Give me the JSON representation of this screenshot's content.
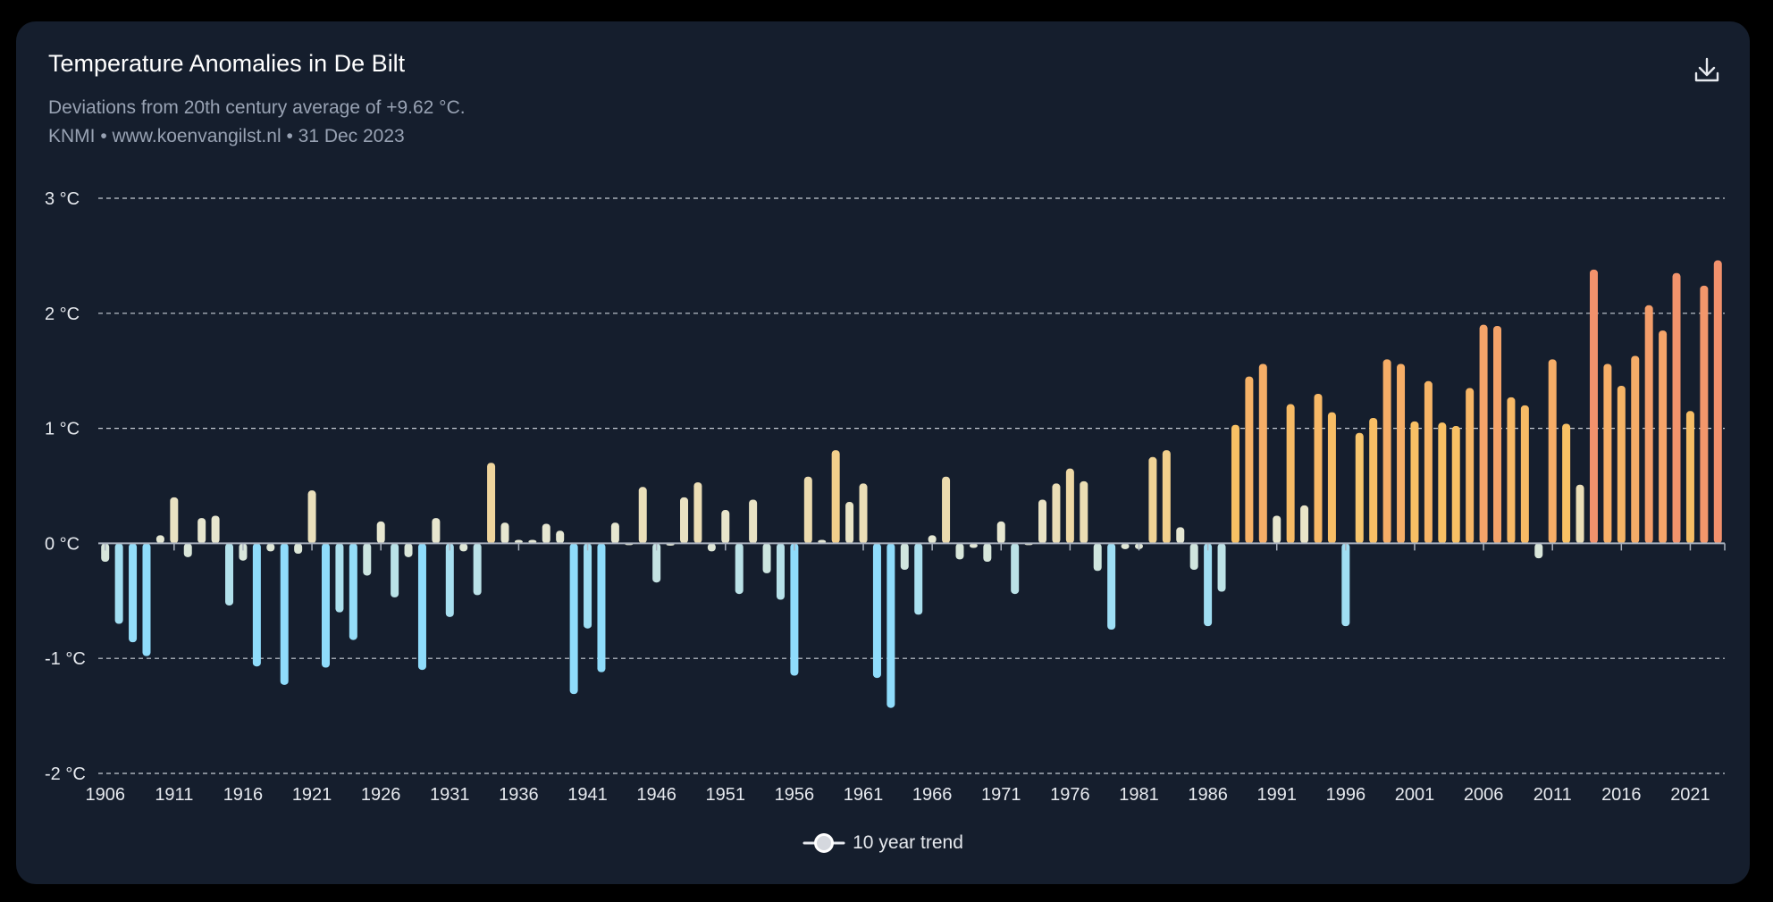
{
  "header": {
    "title": "Temperature Anomalies in De Bilt",
    "subtitle": "Deviations from 20th century average of +9.62 °C.",
    "source": "KNMI • www.koenvangilst.nl • 31 Dec 2023",
    "download_icon": "download-icon"
  },
  "legend": {
    "label": "10 year trend",
    "icon": "toggle-icon"
  },
  "chart_data": {
    "type": "bar",
    "title": "Temperature Anomalies in De Bilt",
    "subtitle": "Deviations from 20th century average of +9.62 °C.",
    "y_unit": " °C",
    "ylim": [
      -2,
      3
    ],
    "y_ticks": [
      3,
      2,
      1,
      0,
      -1,
      -2
    ],
    "y_tick_labels": [
      "3 °C",
      "2 °C",
      "1 °C",
      "0 °C",
      "-1 °C",
      "-2 °C"
    ],
    "x_tick_labels": [
      "1906",
      "1911",
      "1916",
      "1921",
      "1926",
      "1931",
      "1936",
      "1941",
      "1946",
      "1951",
      "1956",
      "1961",
      "1966",
      "1971",
      "1976",
      "1981",
      "1986",
      "1991",
      "1996",
      "2001",
      "2006",
      "2011",
      "2016",
      "2021"
    ],
    "grid": "horizontal-dashed",
    "legend_position": "bottom-center",
    "colors": {
      "cold": "#8fdcfb",
      "neutral": "#e6e8d4",
      "warm": "#f8c264",
      "hot": "#f2916c",
      "grid": "#c8cdd6",
      "axis_text": "#e6e9ee"
    },
    "categories": [
      1906,
      1907,
      1908,
      1909,
      1910,
      1911,
      1912,
      1913,
      1914,
      1915,
      1916,
      1917,
      1918,
      1919,
      1920,
      1921,
      1922,
      1923,
      1924,
      1925,
      1926,
      1927,
      1928,
      1929,
      1930,
      1931,
      1932,
      1933,
      1934,
      1935,
      1936,
      1937,
      1938,
      1939,
      1940,
      1941,
      1942,
      1943,
      1944,
      1945,
      1946,
      1947,
      1948,
      1949,
      1950,
      1951,
      1952,
      1953,
      1954,
      1955,
      1956,
      1957,
      1958,
      1959,
      1960,
      1961,
      1962,
      1963,
      1964,
      1965,
      1966,
      1967,
      1968,
      1969,
      1970,
      1971,
      1972,
      1973,
      1974,
      1975,
      1976,
      1977,
      1978,
      1979,
      1980,
      1981,
      1982,
      1983,
      1984,
      1985,
      1986,
      1987,
      1988,
      1989,
      1990,
      1991,
      1992,
      1993,
      1994,
      1995,
      1996,
      1997,
      1998,
      1999,
      2000,
      2001,
      2002,
      2003,
      2004,
      2005,
      2006,
      2007,
      2008,
      2009,
      2010,
      2011,
      2012,
      2013,
      2014,
      2015,
      2016,
      2017,
      2018,
      2019,
      2020,
      2021,
      2022,
      2023
    ],
    "values": [
      -0.16,
      -0.7,
      -0.86,
      -0.98,
      0.07,
      0.4,
      -0.12,
      0.22,
      0.24,
      -0.54,
      -0.15,
      -1.07,
      -0.07,
      -1.23,
      -0.09,
      0.46,
      -1.08,
      -0.6,
      -0.84,
      -0.28,
      0.19,
      -0.47,
      -0.12,
      -1.1,
      0.22,
      -0.64,
      -0.07,
      -0.45,
      0.7,
      0.18,
      0.03,
      0.03,
      0.17,
      0.11,
      -1.31,
      -0.74,
      -1.12,
      0.18,
      -0.01,
      0.49,
      -0.34,
      -0.02,
      0.4,
      0.53,
      -0.07,
      0.29,
      -0.44,
      0.38,
      -0.26,
      -0.49,
      -1.15,
      0.58,
      0.03,
      0.81,
      0.36,
      0.52,
      -1.17,
      -1.43,
      -0.23,
      -0.62,
      0.07,
      0.58,
      -0.14,
      -0.04,
      -0.16,
      0.19,
      -0.44,
      -0.01,
      0.38,
      0.52,
      0.65,
      0.54,
      -0.24,
      -0.75,
      -0.05,
      -0.05,
      0.75,
      0.81,
      0.14,
      -0.23,
      -0.72,
      -0.42,
      1.03,
      1.45,
      1.56,
      0.24,
      1.21,
      0.33,
      1.3,
      1.14,
      -0.72,
      0.96,
      1.09,
      1.6,
      1.56,
      1.06,
      1.41,
      1.05,
      1.02,
      1.35,
      1.9,
      1.89,
      1.27,
      1.2,
      -0.13,
      1.6,
      1.04,
      0.51,
      2.38,
      1.56,
      1.37,
      1.63,
      2.07,
      1.85,
      2.35,
      1.15,
      2.24,
      2.46
    ]
  }
}
